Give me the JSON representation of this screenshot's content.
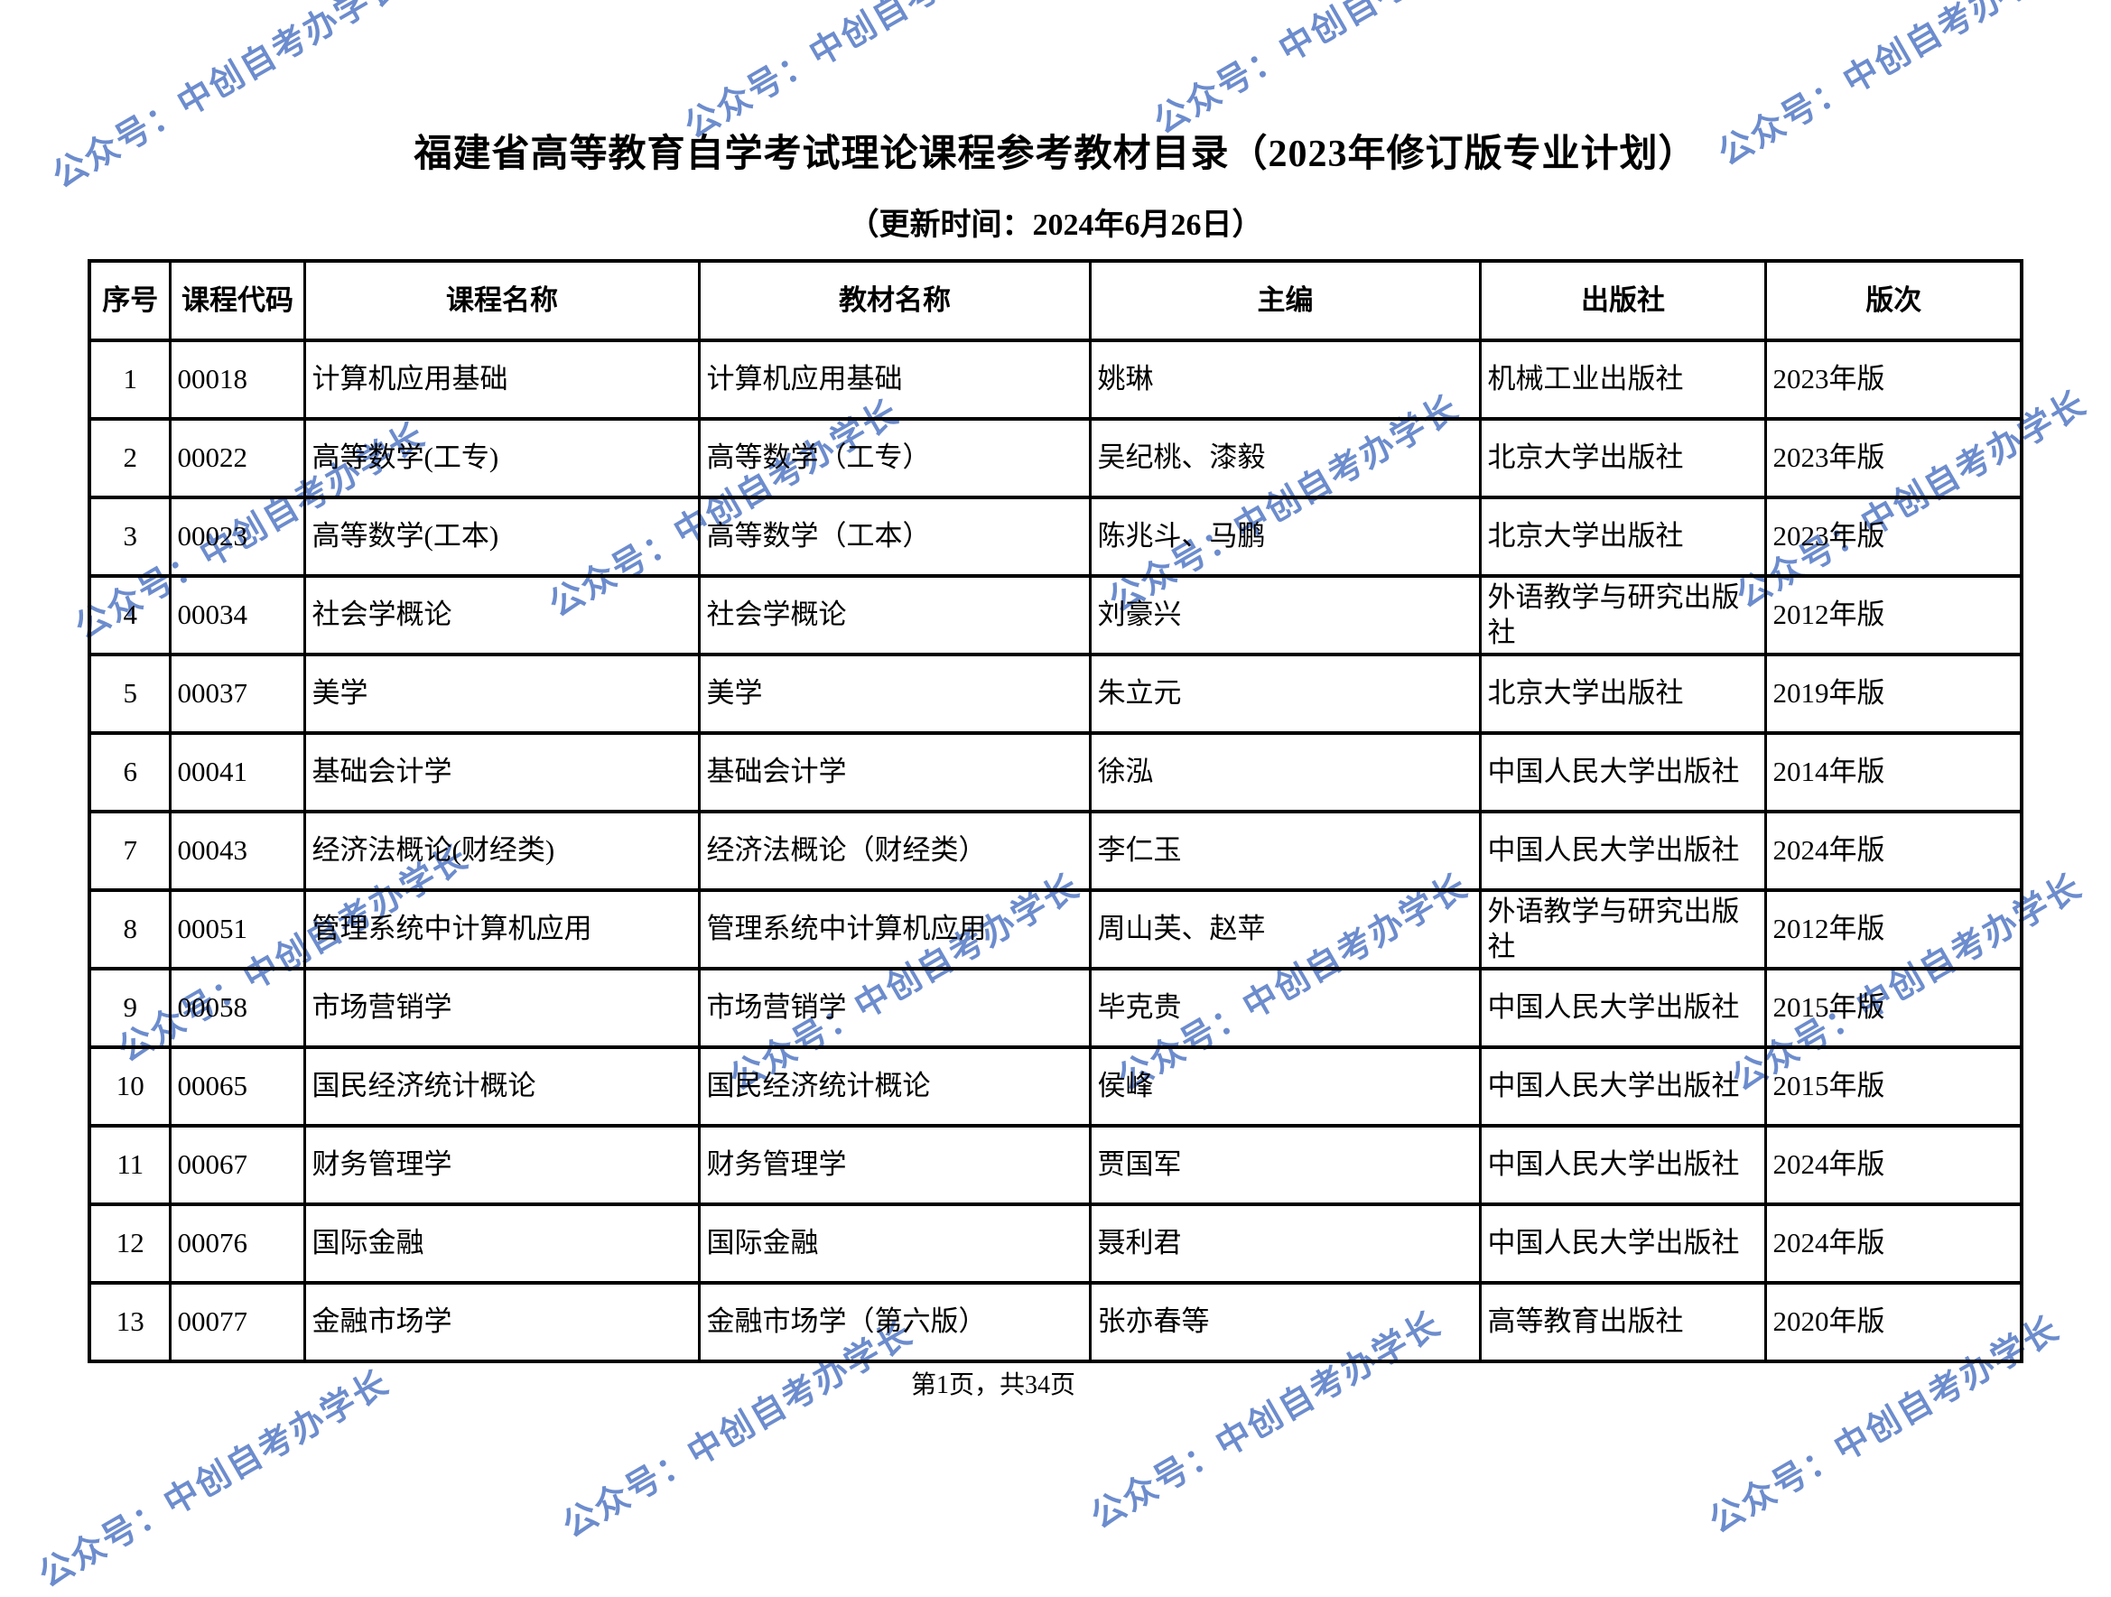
{
  "page": {
    "title": "福建省高等教育自学考试理论课程参考教材目录（2023年修订版专业计划）",
    "subtitle": "（更新时间：2024年6月26日）",
    "footer": "第1页，共34页",
    "watermark_text": "公众号：中创自考办学长",
    "watermark_color": "#6c8ccd"
  },
  "table": {
    "headers": [
      "序号",
      "课程代码",
      "课程名称",
      "教材名称",
      "主编",
      "出版社",
      "版次"
    ],
    "rows": [
      [
        "1",
        "00018",
        "计算机应用基础",
        "计算机应用基础",
        "姚琳",
        "机械工业出版社",
        "2023年版"
      ],
      [
        "2",
        "00022",
        "高等数学(工专)",
        "高等数学（工专）",
        "吴纪桃、漆毅",
        "北京大学出版社",
        "2023年版"
      ],
      [
        "3",
        "00023",
        "高等数学(工本)",
        "高等数学（工本）",
        "陈兆斗、马鹏",
        "北京大学出版社",
        "2023年版"
      ],
      [
        "4",
        "00034",
        "社会学概论",
        "社会学概论",
        "刘豪兴",
        "外语教学与研究出版社",
        "2012年版"
      ],
      [
        "5",
        "00037",
        "美学",
        "美学",
        "朱立元",
        "北京大学出版社",
        "2019年版"
      ],
      [
        "6",
        "00041",
        "基础会计学",
        "基础会计学",
        "徐泓",
        "中国人民大学出版社",
        "2014年版"
      ],
      [
        "7",
        "00043",
        "经济法概论(财经类)",
        "经济法概论（财经类）",
        "李仁玉",
        "中国人民大学出版社",
        "2024年版"
      ],
      [
        "8",
        "00051",
        "管理系统中计算机应用",
        "管理系统中计算机应用",
        "周山芙、赵苹",
        "外语教学与研究出版社",
        "2012年版"
      ],
      [
        "9",
        "00058",
        "市场营销学",
        "市场营销学",
        "毕克贵",
        "中国人民大学出版社",
        "2015年版"
      ],
      [
        "10",
        "00065",
        "国民经济统计概论",
        "国民经济统计概论",
        "侯峰",
        "中国人民大学出版社",
        "2015年版"
      ],
      [
        "11",
        "00067",
        "财务管理学",
        "财务管理学",
        "贾国军",
        "中国人民大学出版社",
        "2024年版"
      ],
      [
        "12",
        "00076",
        "国际金融",
        "国际金融",
        "聂利君",
        "中国人民大学出版社",
        "2024年版"
      ],
      [
        "13",
        "00077",
        "金融市场学",
        "金融市场学（第六版）",
        "张亦春等",
        "高等教育出版社",
        "2020年版"
      ]
    ]
  }
}
